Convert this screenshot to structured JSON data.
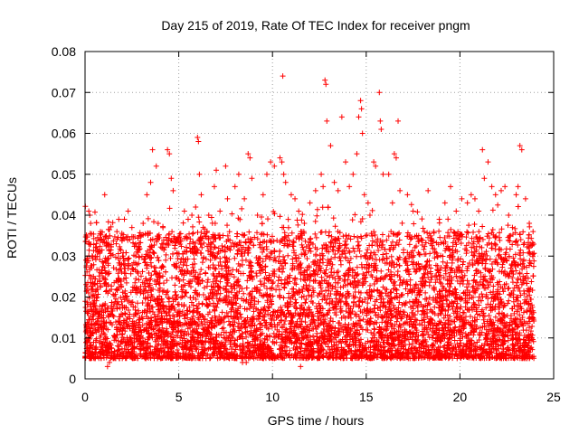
{
  "chart_data": {
    "type": "scatter",
    "title": "Day 215 of 2019, Rate Of TEC Index for receiver pngm",
    "xlabel": "GPS time / hours",
    "ylabel": "ROTI / TECUs",
    "xlim": [
      0,
      25
    ],
    "ylim": [
      0,
      0.08
    ],
    "grid": true,
    "marker": "+",
    "marker_color": "#ff0000",
    "x_ticks": [
      0,
      5,
      10,
      15,
      20,
      25
    ],
    "x_tick_labels": [
      "0",
      "5",
      "10",
      "15",
      "20",
      "25"
    ],
    "y_ticks": [
      0,
      0.01,
      0.02,
      0.03,
      0.04,
      0.05,
      0.06,
      0.07,
      0.08
    ],
    "y_tick_labels": [
      "0",
      "0.01",
      "0.02",
      "0.03",
      "0.04",
      "0.05",
      "0.06",
      "0.07",
      "0.08"
    ],
    "series": [
      {
        "name": "ROTI",
        "points": [
          [
            0.05,
            0.029
          ],
          [
            0.1,
            0.022
          ],
          [
            0.2,
            0.041
          ],
          [
            0.25,
            0.04
          ],
          [
            0.3,
            0.038
          ],
          [
            0.15,
            0.007
          ],
          [
            0.3,
            0.005
          ],
          [
            0.6,
            0.033
          ],
          [
            0.8,
            0.031
          ],
          [
            1.0,
            0.034
          ],
          [
            1.05,
            0.045
          ],
          [
            1.3,
            0.004
          ],
          [
            1.5,
            0.005
          ],
          [
            1.7,
            0.036
          ],
          [
            1.8,
            0.039
          ],
          [
            2.1,
            0.039
          ],
          [
            2.3,
            0.041
          ],
          [
            2.5,
            0.037
          ],
          [
            2.7,
            0.033
          ],
          [
            3.0,
            0.035
          ],
          [
            3.1,
            0.038
          ],
          [
            3.3,
            0.045
          ],
          [
            3.5,
            0.048
          ],
          [
            3.6,
            0.056
          ],
          [
            3.8,
            0.052
          ],
          [
            3.9,
            0.038
          ],
          [
            4.1,
            0.033
          ],
          [
            4.4,
            0.056
          ],
          [
            4.5,
            0.055
          ],
          [
            4.6,
            0.049
          ],
          [
            4.7,
            0.046
          ],
          [
            4.4,
            0.006
          ],
          [
            5.1,
            0.034
          ],
          [
            5.3,
            0.041
          ],
          [
            5.5,
            0.039
          ],
          [
            5.7,
            0.04
          ],
          [
            5.9,
            0.042
          ],
          [
            6.0,
            0.059
          ],
          [
            6.05,
            0.058
          ],
          [
            6.1,
            0.05
          ],
          [
            6.2,
            0.045
          ],
          [
            6.3,
            0.037
          ],
          [
            6.6,
            0.04
          ],
          [
            6.9,
            0.047
          ],
          [
            7.0,
            0.051
          ],
          [
            7.2,
            0.041
          ],
          [
            7.5,
            0.052
          ],
          [
            7.6,
            0.044
          ],
          [
            8.0,
            0.047
          ],
          [
            8.2,
            0.05
          ],
          [
            8.5,
            0.044
          ],
          [
            8.7,
            0.055
          ],
          [
            8.8,
            0.054
          ],
          [
            8.9,
            0.049
          ],
          [
            8.4,
            0.004
          ],
          [
            9.2,
            0.04
          ],
          [
            9.5,
            0.045
          ],
          [
            9.7,
            0.05
          ],
          [
            9.9,
            0.053
          ],
          [
            10.1,
            0.052
          ],
          [
            10.4,
            0.054
          ],
          [
            10.5,
            0.053
          ],
          [
            10.55,
            0.074
          ],
          [
            10.6,
            0.05
          ],
          [
            10.7,
            0.048
          ],
          [
            11.0,
            0.045
          ],
          [
            11.2,
            0.044
          ],
          [
            11.4,
            0.041
          ],
          [
            11.5,
            0.003
          ],
          [
            11.7,
            0.038
          ],
          [
            12.0,
            0.043
          ],
          [
            12.3,
            0.046
          ],
          [
            12.6,
            0.05
          ],
          [
            12.8,
            0.073
          ],
          [
            12.85,
            0.072
          ],
          [
            12.9,
            0.063
          ],
          [
            12.7,
            0.047
          ],
          [
            13.1,
            0.057
          ],
          [
            13.3,
            0.048
          ],
          [
            13.5,
            0.046
          ],
          [
            13.7,
            0.064
          ],
          [
            13.9,
            0.053
          ],
          [
            14.1,
            0.047
          ],
          [
            14.3,
            0.05
          ],
          [
            14.5,
            0.055
          ],
          [
            14.6,
            0.064
          ],
          [
            14.7,
            0.068
          ],
          [
            14.75,
            0.066
          ],
          [
            14.8,
            0.06
          ],
          [
            14.9,
            0.045
          ],
          [
            15.1,
            0.043
          ],
          [
            15.2,
            0.04
          ],
          [
            15.4,
            0.053
          ],
          [
            15.5,
            0.052
          ],
          [
            15.7,
            0.07
          ],
          [
            15.75,
            0.063
          ],
          [
            15.8,
            0.061
          ],
          [
            15.9,
            0.05
          ],
          [
            15.6,
            0.006
          ],
          [
            16.2,
            0.05
          ],
          [
            16.4,
            0.043
          ],
          [
            16.5,
            0.055
          ],
          [
            16.6,
            0.054
          ],
          [
            16.7,
            0.063
          ],
          [
            16.8,
            0.046
          ],
          [
            17.2,
            0.045
          ],
          [
            17.5,
            0.041
          ],
          [
            17.8,
            0.035
          ],
          [
            18.1,
            0.036
          ],
          [
            18.3,
            0.046
          ],
          [
            18.6,
            0.036
          ],
          [
            18.9,
            0.039
          ],
          [
            19.2,
            0.043
          ],
          [
            19.5,
            0.047
          ],
          [
            19.8,
            0.041
          ],
          [
            20.1,
            0.044
          ],
          [
            20.4,
            0.043
          ],
          [
            20.6,
            0.045
          ],
          [
            20.8,
            0.044
          ],
          [
            21.0,
            0.041
          ],
          [
            20.3,
            0.006
          ],
          [
            21.2,
            0.056
          ],
          [
            21.3,
            0.049
          ],
          [
            21.5,
            0.053
          ],
          [
            21.7,
            0.047
          ],
          [
            21.9,
            0.045
          ],
          [
            22.2,
            0.046
          ],
          [
            22.4,
            0.047
          ],
          [
            22.6,
            0.04
          ],
          [
            22.8,
            0.037
          ],
          [
            23.0,
            0.045
          ],
          [
            23.1,
            0.047
          ],
          [
            23.2,
            0.057
          ],
          [
            23.3,
            0.056
          ],
          [
            23.5,
            0.044
          ],
          [
            23.7,
            0.038
          ],
          [
            23.9,
            0.036
          ],
          [
            23.5,
            0.005
          ],
          [
            22.9,
            0.005
          ],
          [
            19.3,
            0.007
          ],
          [
            17.0,
            0.008
          ],
          [
            8.6,
            0.004
          ],
          [
            2.5,
            0.006
          ],
          [
            1.2,
            0.003
          ]
        ],
        "bulk_band_note": "Dense cloud of points between roughly 0.005 and 0.035 across 0–24 h"
      }
    ]
  }
}
